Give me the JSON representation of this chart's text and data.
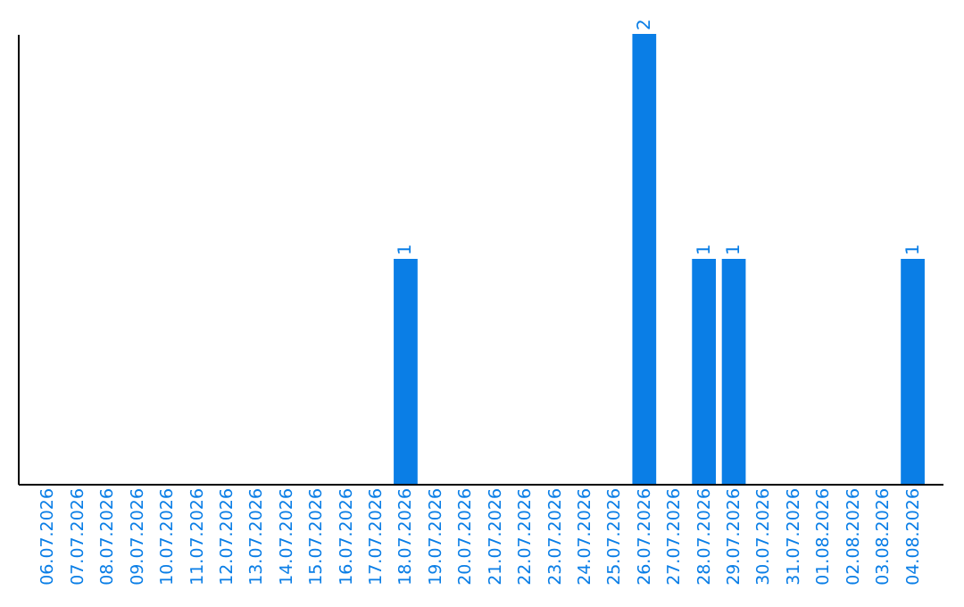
{
  "chart_data": {
    "type": "bar",
    "categories": [
      "06.07.2026",
      "07.07.2026",
      "08.07.2026",
      "09.07.2026",
      "10.07.2026",
      "11.07.2026",
      "12.07.2026",
      "13.07.2026",
      "14.07.2026",
      "15.07.2026",
      "16.07.2026",
      "17.07.2026",
      "18.07.2026",
      "19.07.2026",
      "20.07.2026",
      "21.07.2026",
      "22.07.2026",
      "23.07.2026",
      "24.07.2026",
      "25.07.2026",
      "26.07.2026",
      "27.07.2026",
      "28.07.2026",
      "29.07.2026",
      "30.07.2026",
      "31.07.2026",
      "01.08.2026",
      "02.08.2026",
      "03.08.2026",
      "04.08.2026"
    ],
    "values": [
      null,
      null,
      null,
      null,
      null,
      null,
      null,
      null,
      null,
      null,
      null,
      null,
      1,
      null,
      null,
      null,
      null,
      null,
      null,
      null,
      2,
      null,
      1,
      1,
      null,
      null,
      null,
      null,
      null,
      1
    ],
    "color": "#0a7ee6",
    "data_labels": true,
    "tick_labels": "x",
    "grid": false
  }
}
